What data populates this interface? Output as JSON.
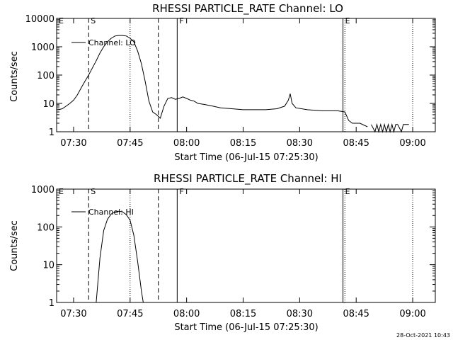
{
  "timestamp": "28-Oct-2021 10:43",
  "chart_data": [
    {
      "type": "line",
      "title": "RHESSI PARTICLE_RATE Channel: LO",
      "xlabel": "Start Time (06-Jul-15 07:25:30)",
      "ylabel": "Counts/sec",
      "yscale": "log",
      "xlim": [
        "07:25:30",
        "09:06"
      ],
      "ylim": [
        1,
        10000
      ],
      "x_ticks": [
        "07:30",
        "07:45",
        "08:00",
        "08:15",
        "08:30",
        "08:45",
        "09:00"
      ],
      "y_ticks": [
        "1",
        "10",
        "100",
        "1000",
        "10000"
      ],
      "legend": {
        "position": "top-left",
        "entries": [
          "Channel: LO"
        ]
      },
      "event_markers": [
        {
          "time": "07:25:30",
          "label": "E",
          "style": "solid"
        },
        {
          "time": "07:34:00",
          "label": "S",
          "style": "dashed"
        },
        {
          "time": "07:52:30",
          "label": "",
          "style": "dashed"
        },
        {
          "time": "07:57:30",
          "label": "F",
          "style": "solid"
        },
        {
          "time": "08:41:30",
          "label": "E",
          "style": "solid"
        },
        {
          "time": "07:45:00",
          "label": "",
          "style": "dotted"
        },
        {
          "time": "08:42:00",
          "label": "",
          "style": "dotted"
        },
        {
          "time": "09:00:00",
          "label": "",
          "style": "dotted"
        }
      ],
      "series": [
        {
          "name": "Channel: LO",
          "segments": [
            [
              [
                "07:25:30",
                6
              ],
              [
                "07:26:00",
                6
              ],
              [
                "07:27:00",
                6.5
              ],
              [
                "07:28:00",
                8
              ],
              [
                "07:29:00",
                10
              ],
              [
                "07:30:00",
                13
              ],
              [
                "07:31:00",
                20
              ],
              [
                "07:32:00",
                35
              ],
              [
                "07:33:00",
                60
              ],
              [
                "07:34:00",
                100
              ],
              [
                "07:35:00",
                180
              ],
              [
                "07:36:00",
                320
              ],
              [
                "07:37:00",
                600
              ],
              [
                "07:38:00",
                1000
              ],
              [
                "07:39:00",
                1500
              ],
              [
                "07:40:00",
                2000
              ],
              [
                "07:41:00",
                2400
              ],
              [
                "07:42:00",
                2500
              ],
              [
                "07:43:00",
                2500
              ],
              [
                "07:44:00",
                2400
              ],
              [
                "07:45:00",
                2000
              ],
              [
                "07:46:00",
                1500
              ],
              [
                "07:47:00",
                700
              ],
              [
                "07:48:00",
                250
              ],
              [
                "07:49:00",
                60
              ],
              [
                "07:50:00",
                12
              ],
              [
                "07:51:00",
                5
              ],
              [
                "07:52:00",
                4
              ],
              [
                "07:53:00",
                3
              ],
              [
                "07:54:00",
                8
              ],
              [
                "07:55:00",
                15
              ],
              [
                "07:56:00",
                16
              ],
              [
                "07:57:00",
                14
              ],
              [
                "07:58:00",
                15
              ],
              [
                "07:59:00",
                17
              ],
              [
                "08:00:00",
                15
              ],
              [
                "08:01:00",
                13
              ],
              [
                "08:02:00",
                12
              ],
              [
                "08:03:00",
                10
              ],
              [
                "08:05:00",
                9
              ],
              [
                "08:07:00",
                8
              ],
              [
                "08:09:00",
                7
              ],
              [
                "08:12:00",
                6.5
              ],
              [
                "08:15:00",
                6
              ],
              [
                "08:18:00",
                6
              ],
              [
                "08:21:00",
                6
              ],
              [
                "08:24:00",
                6.5
              ],
              [
                "08:26:00",
                8
              ],
              [
                "08:27:00",
                13
              ],
              [
                "08:27:30",
                22
              ],
              [
                "08:28:00",
                10
              ],
              [
                "08:29:00",
                7
              ],
              [
                "08:32:00",
                6
              ],
              [
                "08:36:00",
                5.5
              ],
              [
                "08:40:00",
                5.5
              ],
              [
                "08:42:00",
                5
              ],
              [
                "08:43:00",
                2.5
              ],
              [
                "08:44:00",
                2
              ],
              [
                "08:46:00",
                2
              ],
              [
                "08:48:00",
                1.5
              ]
            ],
            [
              [
                "08:49:00",
                1.8
              ],
              [
                "08:50:00",
                1
              ],
              [
                "08:50:30",
                1.8
              ],
              [
                "08:51:00",
                1
              ],
              [
                "08:51:30",
                1.8
              ],
              [
                "08:52:00",
                1
              ],
              [
                "08:52:30",
                1.8
              ],
              [
                "08:53:00",
                1
              ],
              [
                "08:53:30",
                1.8
              ],
              [
                "08:54:00",
                1
              ],
              [
                "08:54:30",
                1.8
              ],
              [
                "08:55:00",
                1
              ],
              [
                "08:55:30",
                1.8
              ],
              [
                "08:56:00",
                1.8
              ],
              [
                "08:57:00",
                1
              ],
              [
                "08:57:30",
                1.8
              ],
              [
                "08:59:00",
                1.8
              ]
            ]
          ]
        }
      ]
    },
    {
      "type": "line",
      "title": "RHESSI PARTICLE_RATE Channel: HI",
      "xlabel": "Start Time (06-Jul-15 07:25:30)",
      "ylabel": "Counts/sec",
      "yscale": "log",
      "xlim": [
        "07:25:30",
        "09:06"
      ],
      "ylim": [
        1,
        1000
      ],
      "x_ticks": [
        "07:30",
        "07:45",
        "08:00",
        "08:15",
        "08:30",
        "08:45",
        "09:00"
      ],
      "y_ticks": [
        "1",
        "10",
        "100",
        "1000"
      ],
      "legend": {
        "position": "top-left",
        "entries": [
          "Channel: HI"
        ]
      },
      "event_markers": [
        {
          "time": "07:25:30",
          "label": "E",
          "style": "solid"
        },
        {
          "time": "07:34:00",
          "label": "S",
          "style": "dashed"
        },
        {
          "time": "07:52:30",
          "label": "",
          "style": "dashed"
        },
        {
          "time": "07:57:30",
          "label": "F",
          "style": "solid"
        },
        {
          "time": "08:41:30",
          "label": "E",
          "style": "solid"
        },
        {
          "time": "07:45:00",
          "label": "",
          "style": "dotted"
        },
        {
          "time": "08:42:00",
          "label": "",
          "style": "dotted"
        },
        {
          "time": "09:00:00",
          "label": "",
          "style": "dotted"
        }
      ],
      "series": [
        {
          "name": "Channel: HI",
          "segments": [
            [
              [
                "07:36:00",
                1
              ],
              [
                "07:37:00",
                15
              ],
              [
                "07:38:00",
                80
              ],
              [
                "07:39:00",
                160
              ],
              [
                "07:40:00",
                220
              ],
              [
                "07:41:00",
                250
              ],
              [
                "07:42:00",
                260
              ],
              [
                "07:43:00",
                250
              ],
              [
                "07:44:00",
                210
              ],
              [
                "07:45:00",
                150
              ],
              [
                "07:46:00",
                60
              ],
              [
                "07:47:00",
                12
              ],
              [
                "07:48:00",
                2
              ],
              [
                "07:48:30",
                1
              ]
            ]
          ]
        }
      ]
    }
  ]
}
